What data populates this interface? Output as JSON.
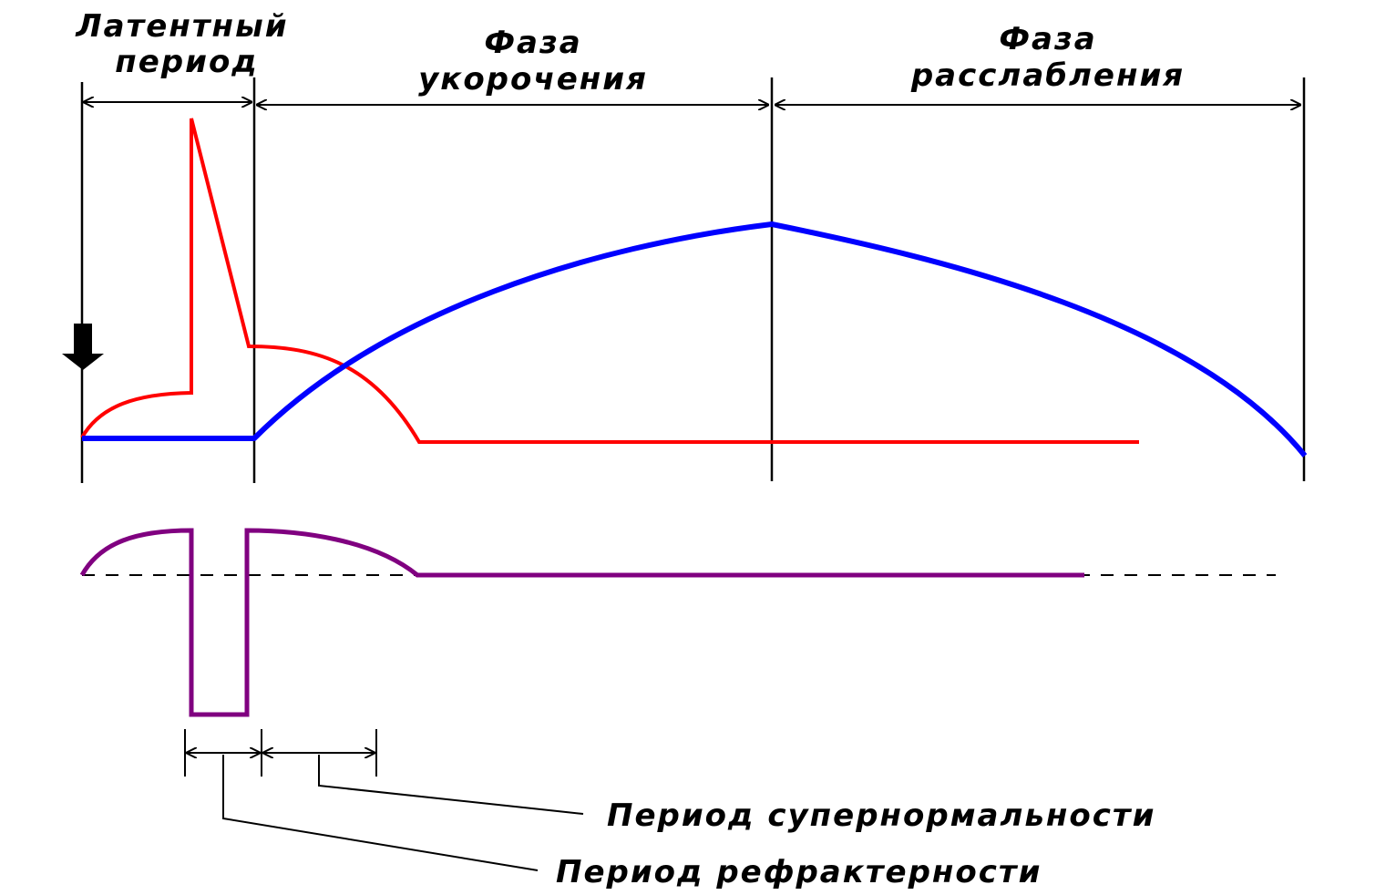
{
  "labels": {
    "latent_line1": "Латентный",
    "latent_line2": "период",
    "shortening_line1": "Фаза",
    "shortening_line2": "укорочения",
    "relaxation_line1": "Фаза",
    "relaxation_line2": "расслабления",
    "supernormal": "Период супернормальности",
    "refractory": "Период рефрактерности"
  },
  "colors": {
    "excitation_curve": "#ff0000",
    "contraction_curve": "#0000ff",
    "excitability_curve": "#800080",
    "lines": "#000000"
  },
  "icons": {
    "stimulus_marker": "down-arrow-icon"
  }
}
